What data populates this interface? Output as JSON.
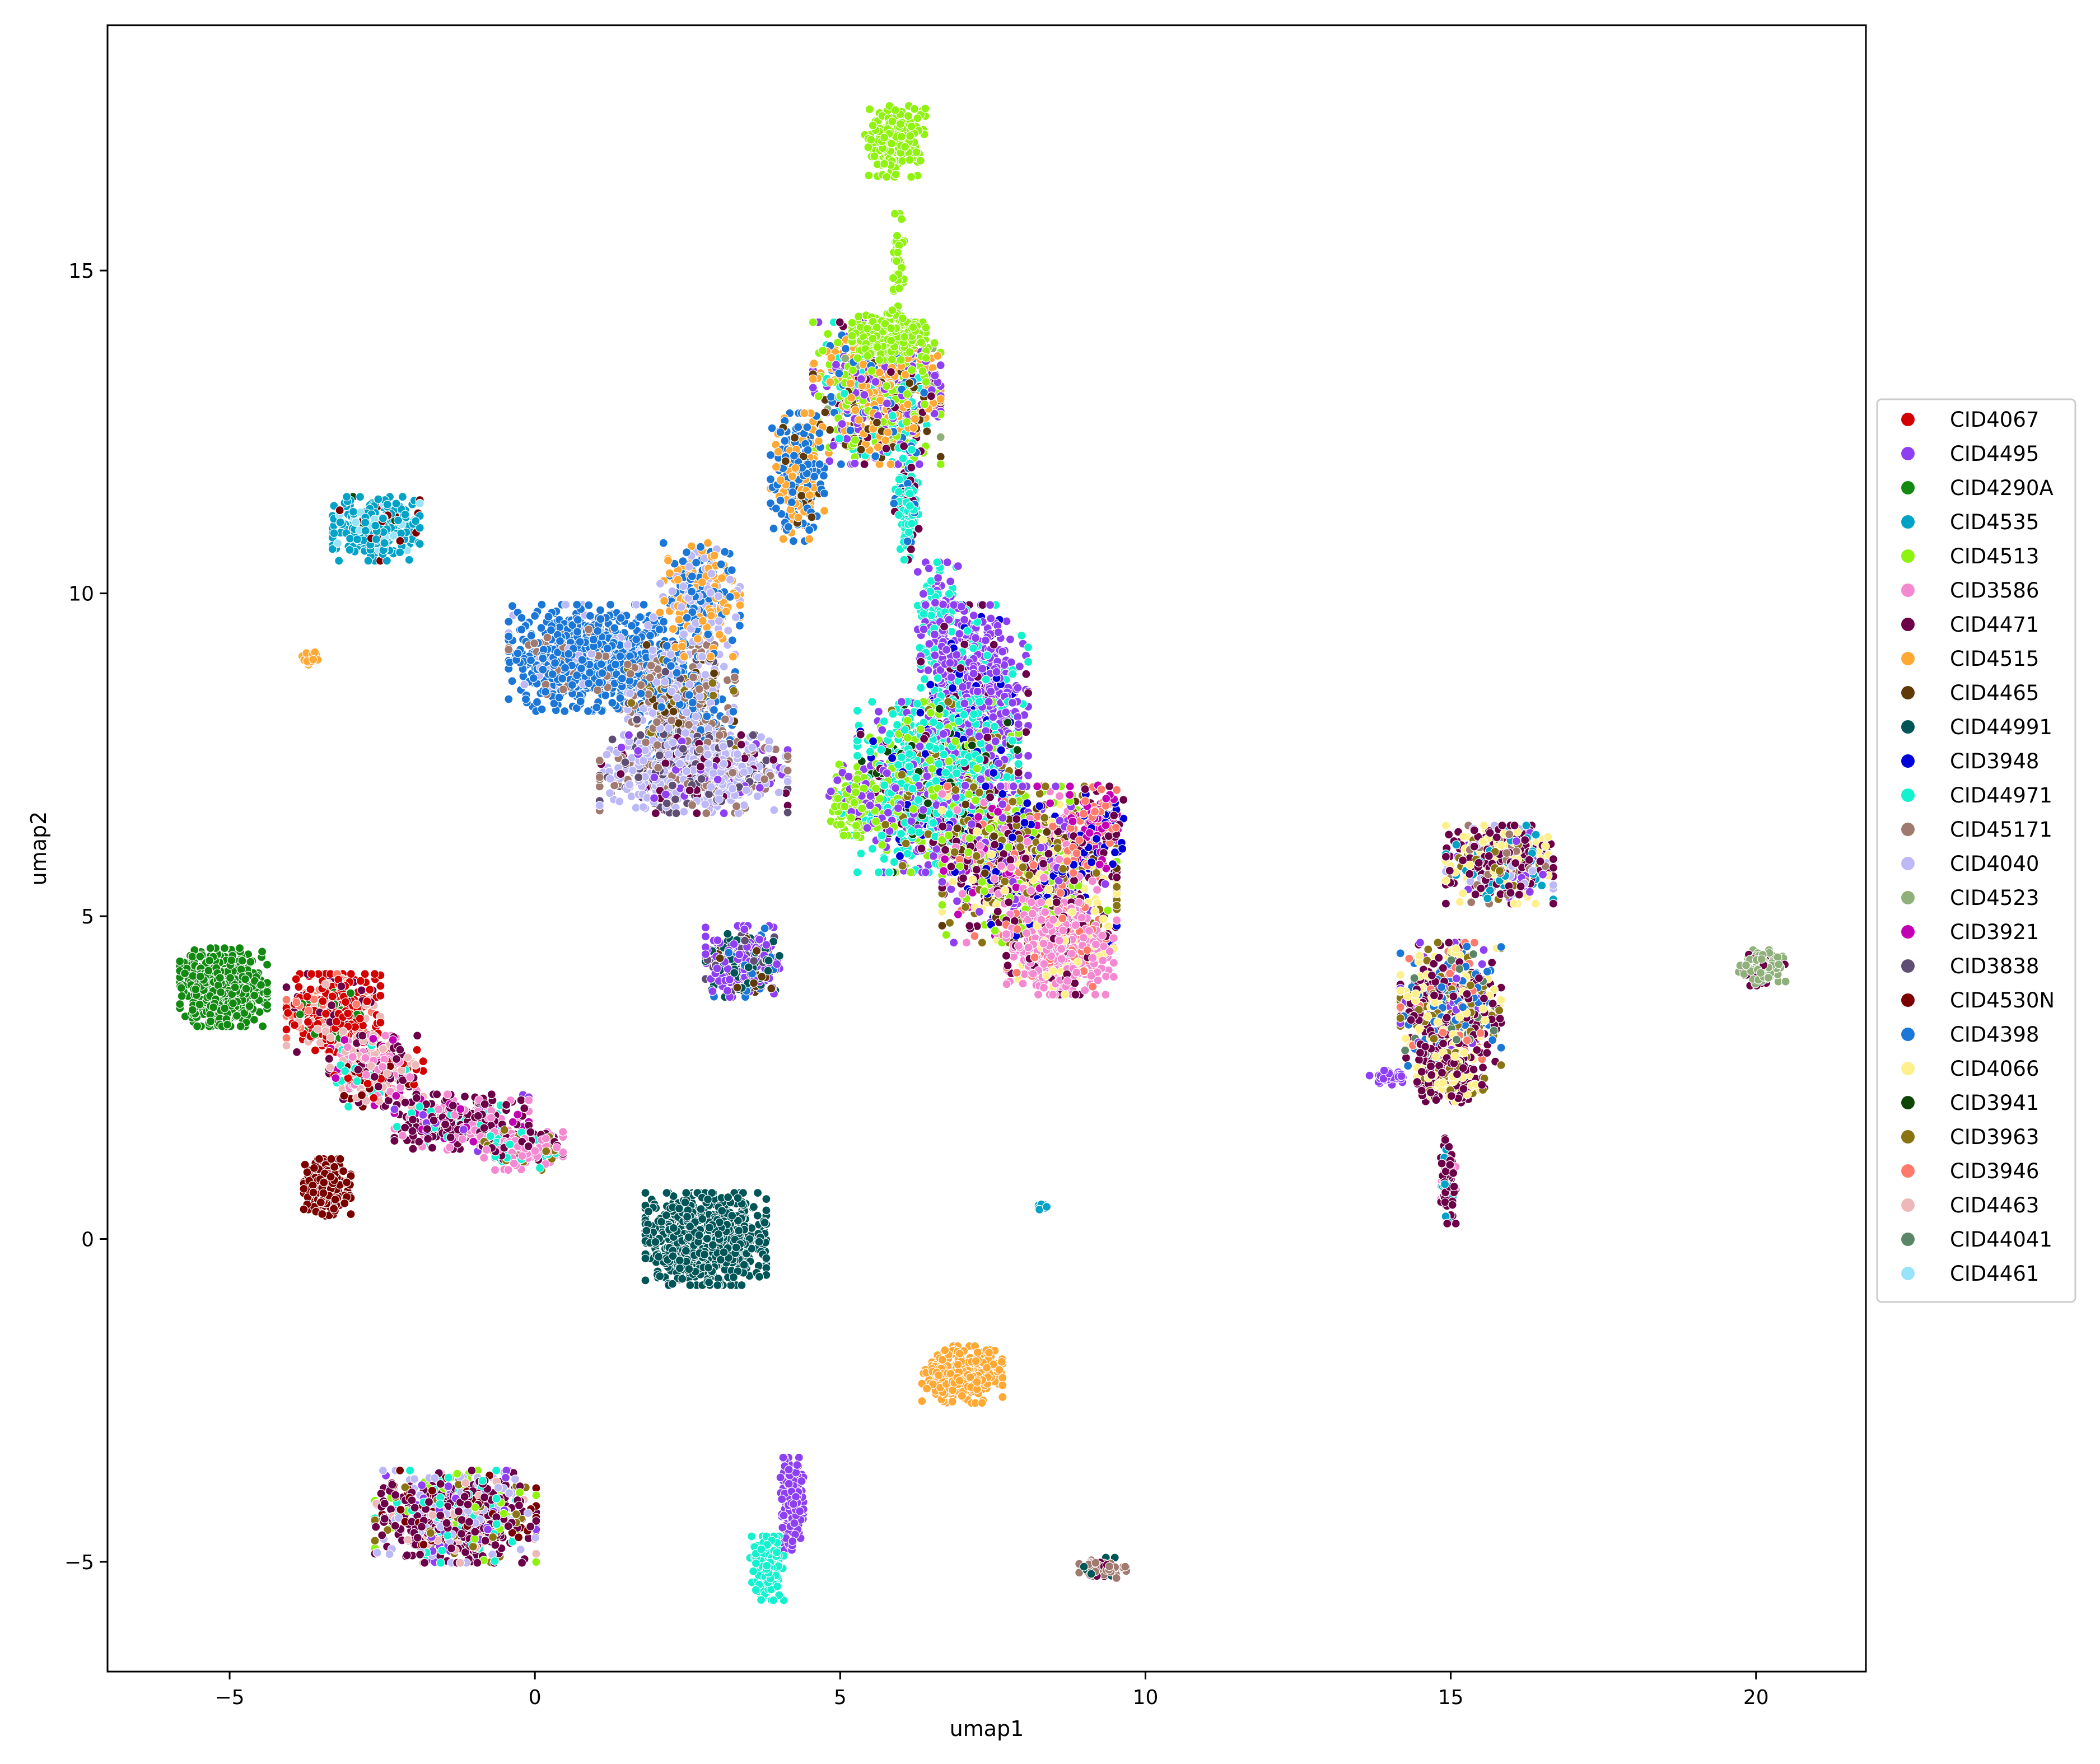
{
  "chart_data": {
    "type": "scatter",
    "xlabel": "umap1",
    "ylabel": "umap2",
    "xlim": [
      -7,
      21.8
    ],
    "ylim": [
      -6.7,
      18.8
    ],
    "xticks": [
      -5,
      0,
      5,
      10,
      15,
      20
    ],
    "yticks": [
      -5,
      0,
      5,
      10,
      15
    ],
    "xtick_labels": [
      "−5",
      "0",
      "5",
      "10",
      "15",
      "20"
    ],
    "ytick_labels": [
      "−5",
      "0",
      "5",
      "10",
      "15"
    ],
    "grid": false,
    "legend_placement": "right",
    "legend": [
      {
        "label": "CID4067",
        "color": "#d40000"
      },
      {
        "label": "CID4495",
        "color": "#8e3ff2"
      },
      {
        "label": "CID4290A",
        "color": "#128a12"
      },
      {
        "label": "CID4535",
        "color": "#00a3c7"
      },
      {
        "label": "CID4513",
        "color": "#8ff20f"
      },
      {
        "label": "CID3586",
        "color": "#f589d1"
      },
      {
        "label": "CID4471",
        "color": "#6b0049"
      },
      {
        "label": "CID4515",
        "color": "#ffa833"
      },
      {
        "label": "CID4465",
        "color": "#5e3a0a"
      },
      {
        "label": "CID44991",
        "color": "#005557"
      },
      {
        "label": "CID3948",
        "color": "#0000d9"
      },
      {
        "label": "CID44971",
        "color": "#12f2cf"
      },
      {
        "label": "CID45171",
        "color": "#a07a6e"
      },
      {
        "label": "CID4040",
        "color": "#bdb9f7"
      },
      {
        "label": "CID4523",
        "color": "#8fb07a"
      },
      {
        "label": "CID3921",
        "color": "#c200b5"
      },
      {
        "label": "CID3838",
        "color": "#5e4e73"
      },
      {
        "label": "CID4530N",
        "color": "#7a0000"
      },
      {
        "label": "CID4398",
        "color": "#1a77d8"
      },
      {
        "label": "CID4066",
        "color": "#fff08c"
      },
      {
        "label": "CID3941",
        "color": "#0d4708"
      },
      {
        "label": "CID3963",
        "color": "#8a7312"
      },
      {
        "label": "CID3946",
        "color": "#ff7a6b"
      },
      {
        "label": "CID4463",
        "color": "#edb8b8"
      },
      {
        "label": "CID44041",
        "color": "#5a8566"
      },
      {
        "label": "CID4461",
        "color": "#99e3fa"
      }
    ],
    "clusters": [
      {
        "cx": 5.9,
        "cy": 17.0,
        "rx": 0.45,
        "ry": 0.5,
        "n": 220,
        "mix": {
          "CID4513": 1
        }
      },
      {
        "cx": 5.95,
        "cy": 15.0,
        "rx": 0.1,
        "ry": 0.8,
        "n": 40,
        "mix": {
          "CID4513": 1
        }
      },
      {
        "cx": -2.6,
        "cy": 11.0,
        "rx": 0.65,
        "ry": 0.45,
        "n": 320,
        "mix": {
          "CID4535": 8,
          "CID4461": 1,
          "CID4530N": 0.6,
          "CID3941": 0.3
        }
      },
      {
        "cx": -3.7,
        "cy": 9.0,
        "rx": 0.13,
        "ry": 0.13,
        "n": 22,
        "mix": {
          "CID4515": 1
        }
      },
      {
        "cx": 1.0,
        "cy": 9.0,
        "rx": 1.3,
        "ry": 0.75,
        "n": 900,
        "mix": {
          "CID4398": 10,
          "CID4040": 1,
          "CID45171": 1
        }
      },
      {
        "cx": 2.4,
        "cy": 8.1,
        "rx": 0.8,
        "ry": 1.0,
        "n": 700,
        "mix": {
          "CID45171": 4,
          "CID4040": 4,
          "CID4465": 1,
          "CID4398": 2,
          "CID3963": 1,
          "CID3838": 1
        }
      },
      {
        "cx": 2.6,
        "cy": 7.2,
        "rx": 1.4,
        "ry": 0.55,
        "n": 700,
        "mix": {
          "CID4040": 6,
          "CID45171": 2,
          "CID3838": 2,
          "CID4471": 1,
          "CID4495": 1
        }
      },
      {
        "cx": 2.7,
        "cy": 9.9,
        "rx": 0.6,
        "ry": 0.8,
        "n": 260,
        "mix": {
          "CID4515": 4,
          "CID4398": 4,
          "CID4040": 2
        }
      },
      {
        "cx": 5.6,
        "cy": 13.1,
        "rx": 0.95,
        "ry": 1.0,
        "n": 900,
        "mix": {
          "CID4515": 4,
          "CID4513": 4,
          "CID4495": 3,
          "CID4523": 1,
          "CID4465": 2,
          "CID4471": 1,
          "CID4398": 2,
          "CID44971": 1
        }
      },
      {
        "cx": 4.3,
        "cy": 11.8,
        "rx": 0.4,
        "ry": 0.9,
        "n": 260,
        "mix": {
          "CID4398": 5,
          "CID4515": 3,
          "CID4465": 1
        }
      },
      {
        "cx": 5.8,
        "cy": 14.0,
        "rx": 0.55,
        "ry": 0.35,
        "n": 260,
        "mix": {
          "CID4513": 1
        }
      },
      {
        "cx": 6.1,
        "cy": 11.4,
        "rx": 0.2,
        "ry": 0.8,
        "n": 120,
        "mix": {
          "CID44971": 3,
          "CID4471": 1,
          "CID4398": 1
        }
      },
      {
        "cx": 6.6,
        "cy": 9.6,
        "rx": 0.3,
        "ry": 0.8,
        "n": 150,
        "mix": {
          "CID44971": 3,
          "CID4495": 2
        }
      },
      {
        "cx": 7.2,
        "cy": 8.5,
        "rx": 0.8,
        "ry": 1.2,
        "n": 650,
        "mix": {
          "CID4495": 8,
          "CID44971": 2,
          "CID3948": 1,
          "CID4471": 1
        }
      },
      {
        "cx": 6.6,
        "cy": 7.0,
        "rx": 1.2,
        "ry": 1.2,
        "n": 1400,
        "mix": {
          "CID44971": 8,
          "CID4495": 4,
          "CID4513": 3,
          "CID3963": 1,
          "CID4471": 1,
          "CID3948": 1,
          "CID3941": 1
        }
      },
      {
        "cx": 8.1,
        "cy": 5.8,
        "rx": 1.3,
        "ry": 1.1,
        "n": 1300,
        "mix": {
          "CID3963": 3,
          "CID4513": 3,
          "CID4471": 3,
          "CID3948": 2,
          "CID4066": 2,
          "CID3586": 2,
          "CID4495": 2,
          "CID4465": 1,
          "CID3946": 1,
          "CID3921": 1
        }
      },
      {
        "cx": 8.6,
        "cy": 4.5,
        "rx": 0.8,
        "ry": 0.65,
        "n": 600,
        "mix": {
          "CID3586": 6,
          "CID4066": 1,
          "CID4471": 1,
          "CID3946": 1
        }
      },
      {
        "cx": 9.2,
        "cy": 6.4,
        "rx": 0.4,
        "ry": 0.6,
        "n": 150,
        "mix": {
          "CID3921": 2,
          "CID3946": 2,
          "CID4471": 1,
          "CID3948": 1
        }
      },
      {
        "cx": 5.2,
        "cy": 6.8,
        "rx": 0.35,
        "ry": 0.5,
        "n": 120,
        "mix": {
          "CID4513": 5,
          "CID4495": 2,
          "CID44971": 1
        }
      },
      {
        "cx": 3.4,
        "cy": 4.3,
        "rx": 0.55,
        "ry": 0.5,
        "n": 380,
        "mix": {
          "CID4495": 6,
          "CID44991": 3,
          "CID3838": 2,
          "CID4398": 1,
          "CID4465": 1
        }
      },
      {
        "cx": -5.1,
        "cy": 3.9,
        "rx": 0.65,
        "ry": 0.55,
        "n": 600,
        "mix": {
          "CID4290A": 1
        }
      },
      {
        "cx": -3.3,
        "cy": 3.5,
        "rx": 0.7,
        "ry": 0.55,
        "n": 450,
        "mix": {
          "CID4067": 6,
          "CID4290A": 1,
          "CID4463": 1,
          "CID4471": 1,
          "CID3946": 1
        }
      },
      {
        "cx": -2.6,
        "cy": 2.6,
        "rx": 0.7,
        "ry": 0.5,
        "n": 320,
        "mix": {
          "CID4463": 3,
          "CID4471": 2,
          "CID3586": 2,
          "CID44971": 1,
          "CID4067": 1,
          "CID3921": 1,
          "CID4530N": 1
        }
      },
      {
        "cx": -1.2,
        "cy": 1.8,
        "rx": 1.0,
        "ry": 0.4,
        "n": 360,
        "mix": {
          "CID4471": 5,
          "CID3921": 1,
          "CID44971": 1,
          "CID3586": 2,
          "CID4495": 1
        }
      },
      {
        "cx": -0.2,
        "cy": 1.4,
        "rx": 0.6,
        "ry": 0.3,
        "n": 220,
        "mix": {
          "CID3586": 4,
          "CID4471": 2,
          "CID3963": 1,
          "CID44971": 1
        }
      },
      {
        "cx": -3.4,
        "cy": 0.8,
        "rx": 0.35,
        "ry": 0.4,
        "n": 230,
        "mix": {
          "CID4530N": 1
        }
      },
      {
        "cx": 2.8,
        "cy": 0.0,
        "rx": 0.9,
        "ry": 0.65,
        "n": 900,
        "mix": {
          "CID44991": 1
        }
      },
      {
        "cx": 7.0,
        "cy": -2.1,
        "rx": 0.6,
        "ry": 0.4,
        "n": 350,
        "mix": {
          "CID4515": 1
        }
      },
      {
        "cx": 8.3,
        "cy": 0.5,
        "rx": 0.08,
        "ry": 0.08,
        "n": 10,
        "mix": {
          "CID4535": 1
        }
      },
      {
        "cx": -1.3,
        "cy": -4.3,
        "rx": 1.2,
        "ry": 0.65,
        "n": 800,
        "mix": {
          "CID4471": 5,
          "CID4040": 2,
          "CID3963": 1,
          "CID4513": 1,
          "CID4495": 1,
          "CID44971": 1,
          "CID4463": 1,
          "CID4530N": 1
        }
      },
      {
        "cx": 4.2,
        "cy": -4.1,
        "rx": 0.18,
        "ry": 0.65,
        "n": 180,
        "mix": {
          "CID4495": 1
        }
      },
      {
        "cx": 3.8,
        "cy": -5.1,
        "rx": 0.25,
        "ry": 0.45,
        "n": 170,
        "mix": {
          "CID44971": 1
        }
      },
      {
        "cx": 9.3,
        "cy": -5.1,
        "rx": 0.35,
        "ry": 0.15,
        "n": 60,
        "mix": {
          "CID45171": 4,
          "CID4471": 1,
          "CID44991": 1
        }
      },
      {
        "cx": 15.8,
        "cy": 5.8,
        "rx": 0.8,
        "ry": 0.55,
        "n": 550,
        "mix": {
          "CID4471": 5,
          "CID4066": 3,
          "CID4040": 2,
          "CID4535": 2,
          "CID45171": 1,
          "CID3963": 1,
          "CID4495": 1
        }
      },
      {
        "cx": 15.0,
        "cy": 3.6,
        "rx": 0.75,
        "ry": 0.9,
        "n": 700,
        "mix": {
          "CID4471": 4,
          "CID4066": 3,
          "CID4398": 2,
          "CID3963": 2,
          "CID44041": 1,
          "CID4495": 1,
          "CID3946": 1
        }
      },
      {
        "cx": 15.0,
        "cy": 2.5,
        "rx": 0.5,
        "ry": 0.35,
        "n": 260,
        "mix": {
          "CID4471": 5,
          "CID4066": 2,
          "CID3963": 1
        }
      },
      {
        "cx": 14.0,
        "cy": 2.5,
        "rx": 0.3,
        "ry": 0.1,
        "n": 40,
        "mix": {
          "CID4495": 1
        }
      },
      {
        "cx": 14.95,
        "cy": 0.9,
        "rx": 0.12,
        "ry": 0.6,
        "n": 100,
        "mix": {
          "CID4471": 4,
          "CID3586": 1,
          "CID4535": 1
        }
      },
      {
        "cx": 20.1,
        "cy": 4.2,
        "rx": 0.35,
        "ry": 0.25,
        "n": 150,
        "mix": {
          "CID4523": 6,
          "CID4471": 1
        }
      }
    ]
  }
}
